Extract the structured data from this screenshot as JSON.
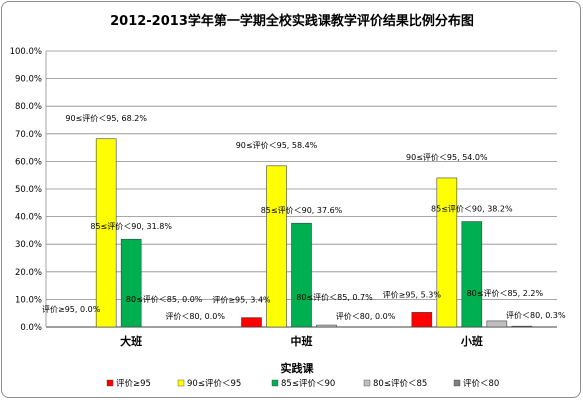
{
  "chart_data": {
    "type": "bar",
    "title": "2012-2013学年第一学期全校实践课教学评价结果比例分布图",
    "xlabel": "实践课",
    "ylabel": "",
    "categories": [
      "大班",
      "中班",
      "小班"
    ],
    "ylim": [
      0,
      100
    ],
    "ytick_step": 10,
    "ytick_format": "0.0%",
    "grid": true,
    "legend_position": "bottom",
    "series": [
      {
        "name": "评价≥95",
        "label_prefix": "评价≥95",
        "values": [
          0.0,
          3.4,
          5.3
        ],
        "color": "#ff0000"
      },
      {
        "name": "90≤评价＜95",
        "label_prefix": "90≤评价＜95",
        "values": [
          68.2,
          58.4,
          54.0
        ],
        "color": "#ffff00"
      },
      {
        "name": "85≤评价＜90",
        "label_prefix": "85≤评价＜90",
        "values": [
          31.8,
          37.6,
          38.2
        ],
        "color": "#00b050"
      },
      {
        "name": "80≤评价＜85",
        "label_prefix": "80≤评价＜85",
        "values": [
          0.0,
          0.7,
          2.2
        ],
        "color": "#bfbfbf"
      },
      {
        "name": "评价＜80",
        "label_prefix": "评价＜80",
        "values": [
          0.0,
          0.0,
          0.3
        ],
        "color": "#7f7f7f"
      }
    ],
    "data_labels": [
      [
        "评价≥95, 0.0%",
        "90≤评价＜95, 68.2%",
        "85≤评价＜90, 31.8%",
        "80≤评价＜85, 0.0%",
        "评价＜80, 0.0%"
      ],
      [
        "评价≥95, 3.4%",
        "90≤评价＜95, 58.4%",
        "85≤评价＜90, 37.6%",
        "80≤评价＜85, 0.7%",
        "评价＜80, 0.0%"
      ],
      [
        "评价≥95, 5.3%",
        "90≤评价＜95, 54.0%",
        "85≤评价＜90, 38.2%",
        "80≤评价＜85, 2.2%",
        "评价＜80, 0.3%"
      ]
    ]
  }
}
